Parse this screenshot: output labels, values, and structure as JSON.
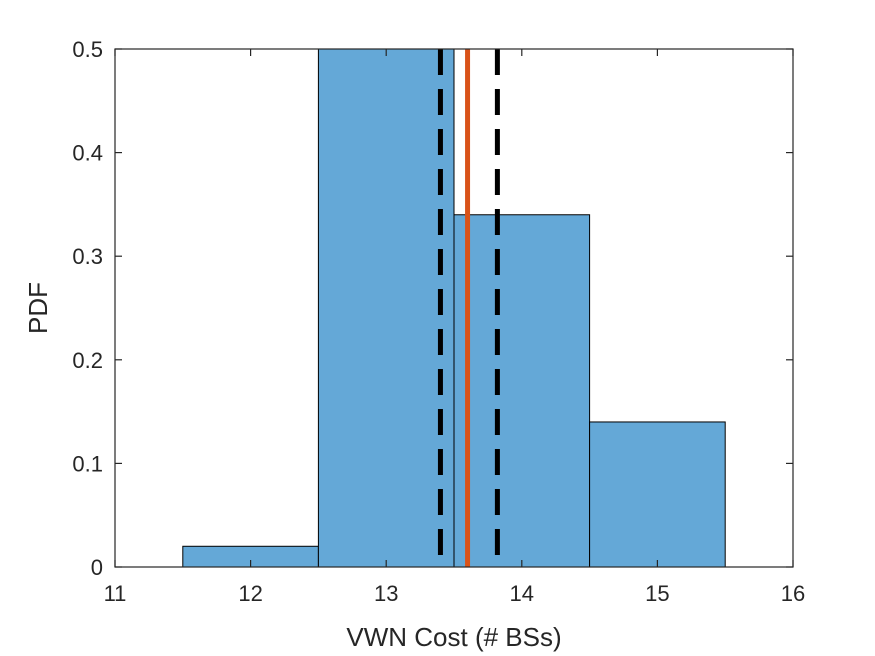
{
  "chart_data": {
    "type": "bar",
    "subtype": "histogram",
    "xlabel": "VWN Cost (# BSs)",
    "ylabel": "PDF",
    "xlim": [
      11,
      16
    ],
    "ylim": [
      0,
      0.5
    ],
    "xticks": [
      "11",
      "12",
      "13",
      "14",
      "15",
      "16"
    ],
    "yticks": [
      "0",
      "0.1",
      "0.2",
      "0.3",
      "0.4",
      "0.5"
    ],
    "bins": [
      {
        "x_start": 11.5,
        "x_end": 12.5,
        "value": 0.02
      },
      {
        "x_start": 12.5,
        "x_end": 13.5,
        "value": 0.5
      },
      {
        "x_start": 13.5,
        "x_end": 14.5,
        "value": 0.34
      },
      {
        "x_start": 14.5,
        "x_end": 15.5,
        "value": 0.14
      }
    ],
    "bar_color": "#64a8d7",
    "vertical_lines": [
      {
        "x": 13.6,
        "style": "solid",
        "color": "#d95319"
      },
      {
        "x": 13.4,
        "style": "dashed",
        "color": "#000000"
      },
      {
        "x": 13.82,
        "style": "dashed",
        "color": "#000000"
      }
    ],
    "grid": false,
    "box": true
  }
}
